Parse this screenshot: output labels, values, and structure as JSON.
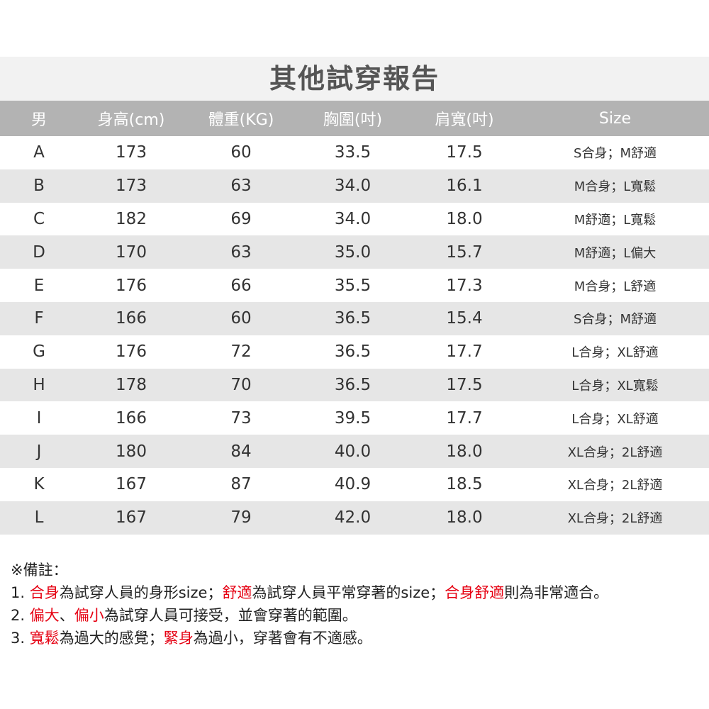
{
  "title": "其他試穿報告",
  "columns": [
    "男",
    "身高(cm)",
    "體重(KG)",
    "胸圍(吋)",
    "肩寬(吋)",
    "Size"
  ],
  "rows": [
    [
      "A",
      "173",
      "60",
      "33.5",
      "17.5",
      "S合身；M舒適"
    ],
    [
      "B",
      "173",
      "63",
      "34.0",
      "16.1",
      "M合身；L寬鬆"
    ],
    [
      "C",
      "182",
      "69",
      "34.0",
      "18.0",
      "M舒適；L寬鬆"
    ],
    [
      "D",
      "170",
      "63",
      "35.0",
      "15.7",
      "M舒適；L偏大"
    ],
    [
      "E",
      "176",
      "66",
      "35.5",
      "17.3",
      "M合身；L舒適"
    ],
    [
      "F",
      "166",
      "60",
      "36.5",
      "15.4",
      "S合身；M舒適"
    ],
    [
      "G",
      "176",
      "72",
      "36.5",
      "17.7",
      "L合身；XL舒適"
    ],
    [
      "H",
      "178",
      "70",
      "36.5",
      "17.5",
      "L合身；XL寬鬆"
    ],
    [
      "I",
      "166",
      "73",
      "39.5",
      "17.7",
      "L合身；XL舒適"
    ],
    [
      "J",
      "180",
      "84",
      "40.0",
      "18.0",
      "XL合身；2L舒適"
    ],
    [
      "K",
      "167",
      "87",
      "40.9",
      "18.5",
      "XL合身；2L舒適"
    ],
    [
      "L",
      "167",
      "79",
      "42.0",
      "18.0",
      "XL合身；2L舒適"
    ]
  ],
  "notes": {
    "heading": "※備註：",
    "lines": [
      [
        {
          "t": "1. "
        },
        {
          "t": "合身",
          "red": true
        },
        {
          "t": "為試穿人員的身形size；"
        },
        {
          "t": "舒適",
          "red": true
        },
        {
          "t": "為試穿人員平常穿著的size；"
        },
        {
          "t": "合身舒適",
          "red": true
        },
        {
          "t": "則為非常適合。"
        }
      ],
      [
        {
          "t": "2. "
        },
        {
          "t": "偏大",
          "red": true
        },
        {
          "t": "、"
        },
        {
          "t": "偏小",
          "red": true
        },
        {
          "t": "為試穿人員可接受，並會穿著的範圍。"
        }
      ],
      [
        {
          "t": "3. "
        },
        {
          "t": "寬鬆",
          "red": true
        },
        {
          "t": "為過大的感覺；"
        },
        {
          "t": "緊身",
          "red": true
        },
        {
          "t": "為過小，穿著會有不適感。"
        }
      ]
    ]
  },
  "colors": {
    "highlight": "#e60012",
    "header_bg": "#b3b3b3",
    "title_bg": "#f2f2f2",
    "alt_row_bg": "#e6e6e6"
  }
}
